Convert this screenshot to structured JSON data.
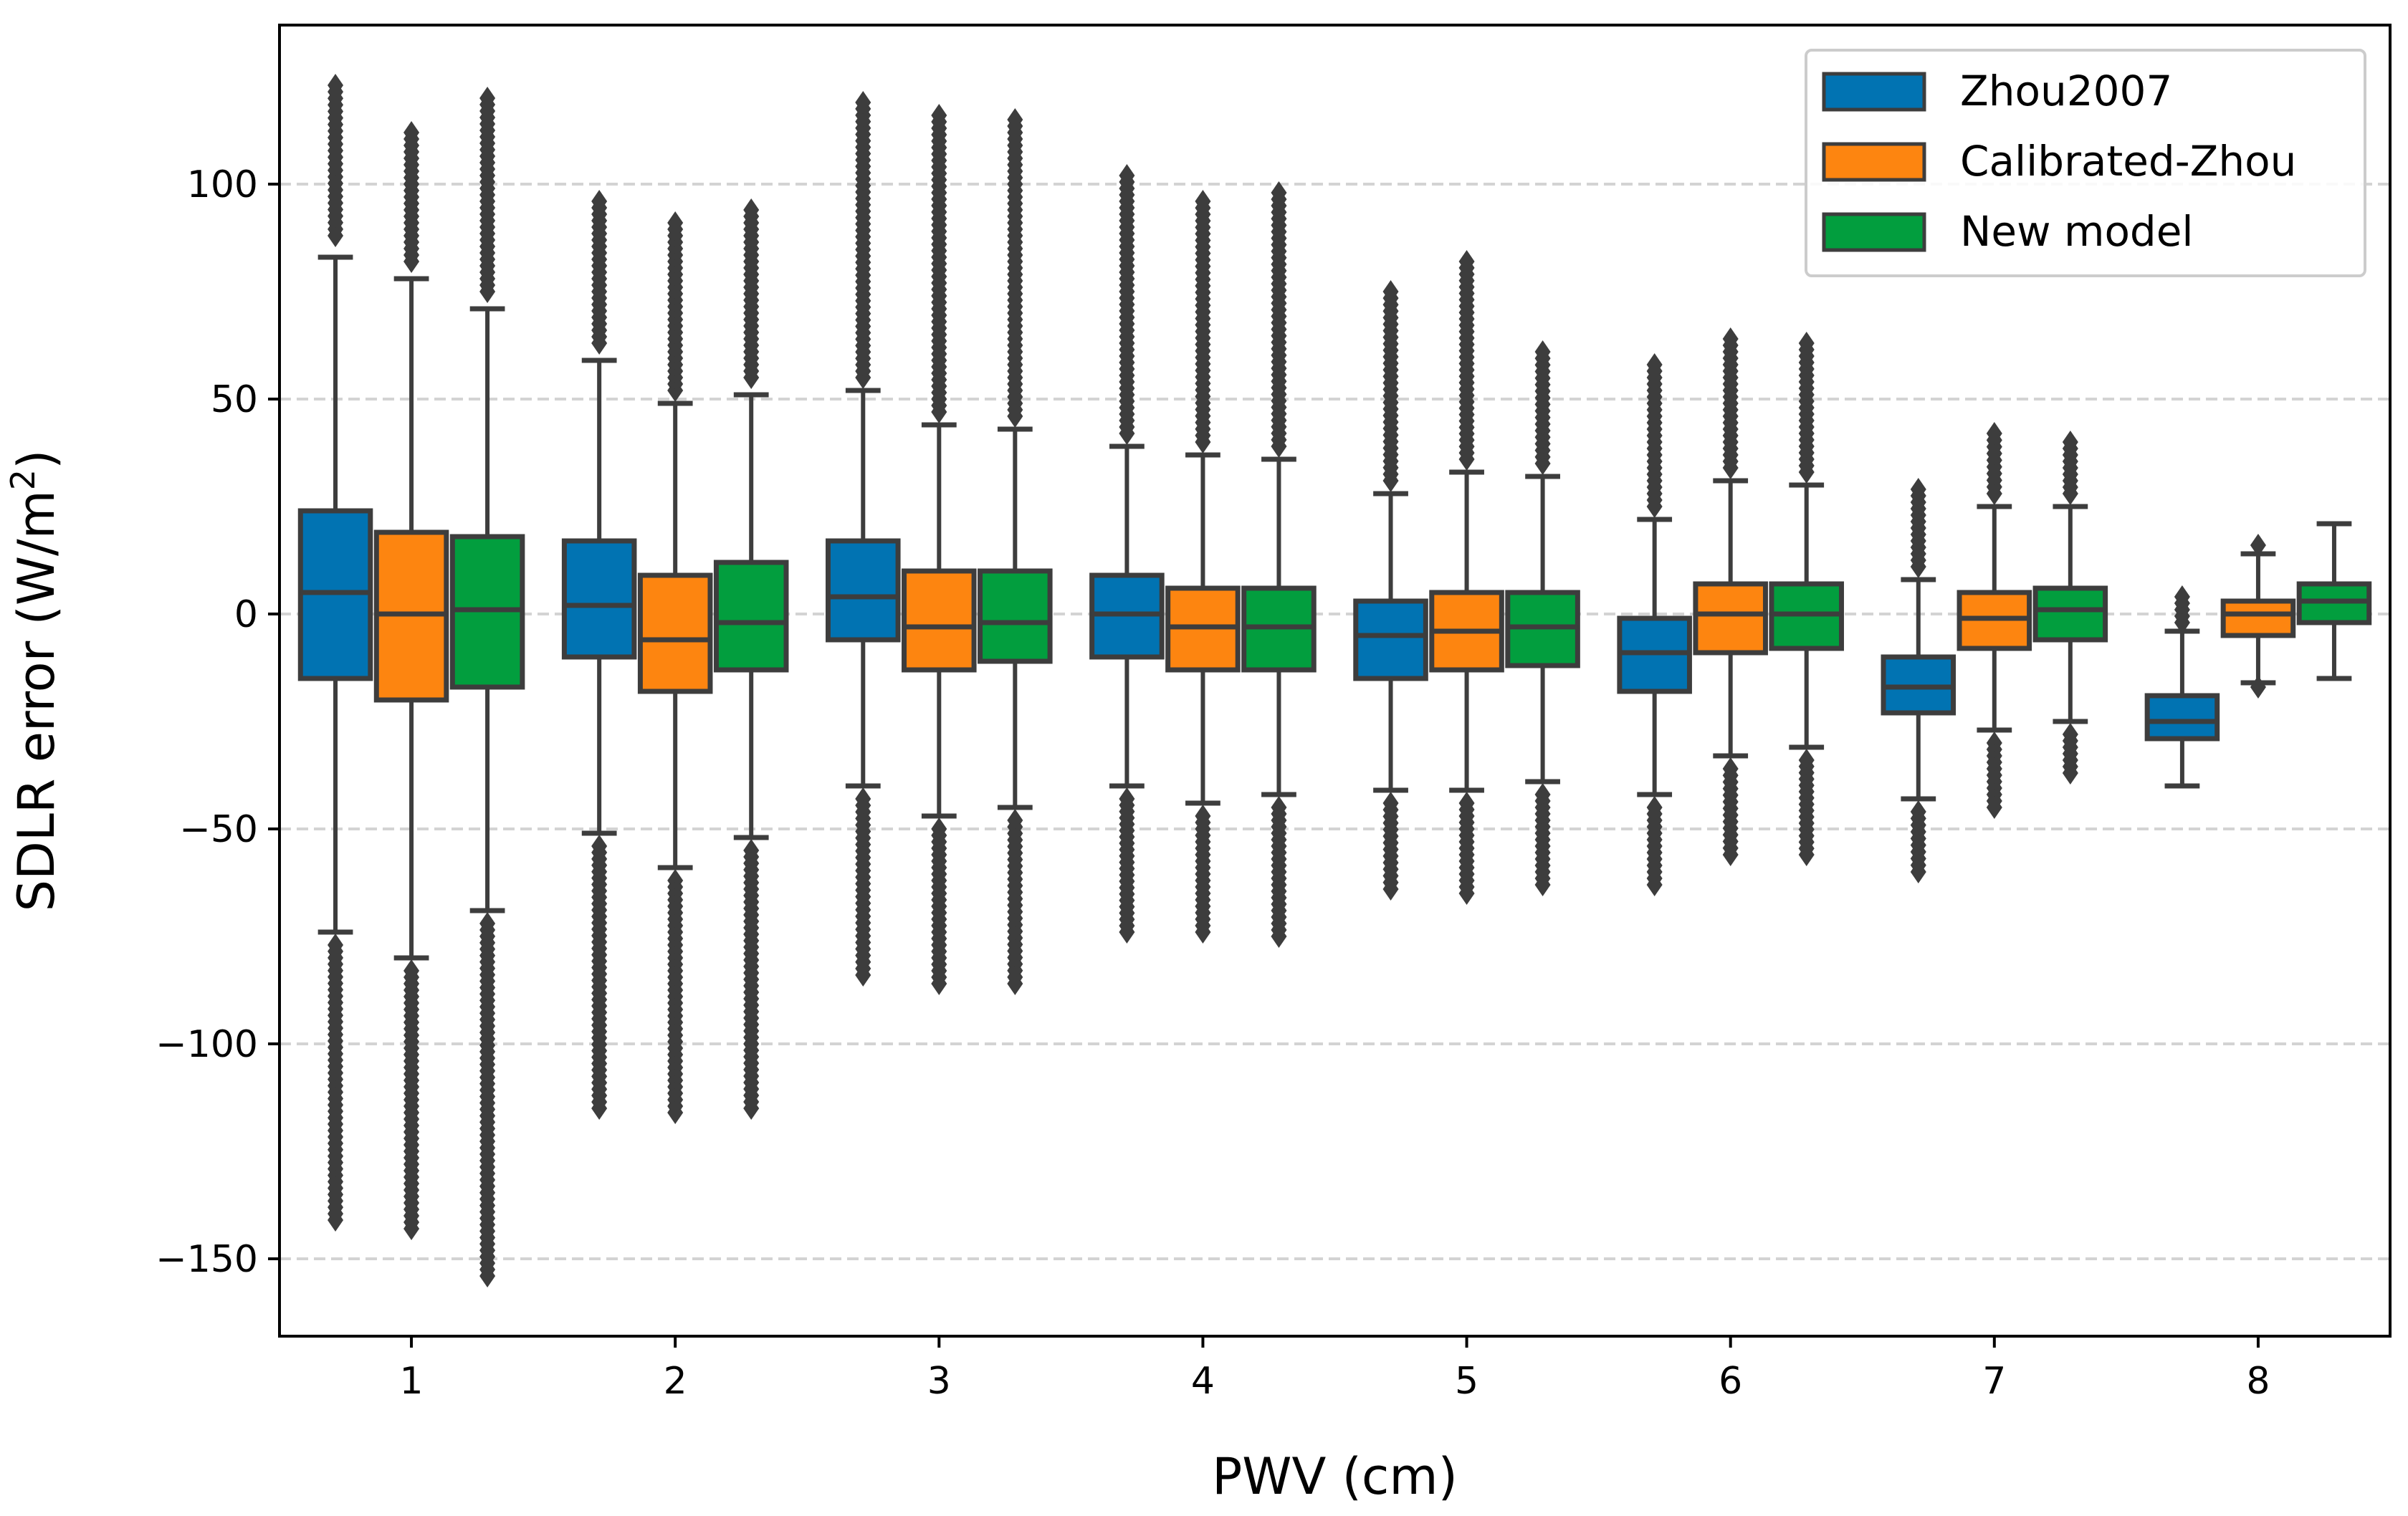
{
  "chart_data": {
    "type": "boxplot",
    "title": "",
    "xlabel": "PWV (cm)",
    "ylabel": "SDLR error (W/m²)",
    "ylabel_parts": {
      "before": "SDLR error (W/m",
      "sup": "2",
      "after": ")"
    },
    "ylim": [
      -168,
      137
    ],
    "yticks": [
      100,
      50,
      0,
      -50,
      -100,
      -150
    ],
    "ytick_labels": [
      "100",
      "50",
      "0",
      "−50",
      "−100",
      "−150"
    ],
    "grid": "y-dashed",
    "legend_position": "top-right",
    "categories": [
      "1",
      "2",
      "3",
      "4",
      "5",
      "6",
      "7",
      "8"
    ],
    "colors": {
      "Zhou2007": "#0173b2",
      "Calibrated-Zhou": "#fd8510",
      "New model": "#029e3e",
      "edge": "#3d3d3d",
      "grid": "#d3d3d3"
    },
    "series": [
      {
        "name": "Zhou2007",
        "boxes": [
          {
            "q1": -15,
            "median": 5,
            "q3": 24,
            "whislo": -74,
            "whishi": 83,
            "fliers_high": [
              88,
              123
            ],
            "fliers_low": [
              -77,
              -141
            ]
          },
          {
            "q1": -10,
            "median": 2,
            "q3": 17,
            "whislo": -51,
            "whishi": 59,
            "fliers_high": [
              63,
              96
            ],
            "fliers_low": [
              -54,
              -115
            ]
          },
          {
            "q1": -6,
            "median": 4,
            "q3": 17,
            "whislo": -40,
            "whishi": 52,
            "fliers_high": [
              55,
              119
            ],
            "fliers_low": [
              -43,
              -84
            ]
          },
          {
            "q1": -10,
            "median": 0,
            "q3": 9,
            "whislo": -40,
            "whishi": 39,
            "fliers_high": [
              42,
              102
            ],
            "fliers_low": [
              -43,
              -74
            ]
          },
          {
            "q1": -15,
            "median": -5,
            "q3": 3,
            "whislo": -41,
            "whishi": 28,
            "fliers_high": [
              31,
              75
            ],
            "fliers_low": [
              -44,
              -64
            ]
          },
          {
            "q1": -18,
            "median": -9,
            "q3": -1,
            "whislo": -42,
            "whishi": 22,
            "fliers_high": [
              25,
              58
            ],
            "fliers_low": [
              -45,
              -63
            ]
          },
          {
            "q1": -23,
            "median": -17,
            "q3": -10,
            "whislo": -43,
            "whishi": 8,
            "fliers_high": [
              11,
              29
            ],
            "fliers_low": [
              -46,
              -60
            ]
          },
          {
            "q1": -29,
            "median": -25,
            "q3": -19,
            "whislo": -40,
            "whishi": -4,
            "fliers_high": [
              -2,
              4
            ],
            "fliers_low": []
          }
        ]
      },
      {
        "name": "Calibrated-Zhou",
        "boxes": [
          {
            "q1": -20,
            "median": 0,
            "q3": 19,
            "whislo": -80,
            "whishi": 78,
            "fliers_high": [
              82,
              112
            ],
            "fliers_low": [
              -83,
              -143
            ]
          },
          {
            "q1": -18,
            "median": -6,
            "q3": 9,
            "whislo": -59,
            "whishi": 49,
            "fliers_high": [
              52,
              91
            ],
            "fliers_low": [
              -62,
              -116
            ]
          },
          {
            "q1": -13,
            "median": -3,
            "q3": 10,
            "whislo": -47,
            "whishi": 44,
            "fliers_high": [
              47,
              116
            ],
            "fliers_low": [
              -50,
              -86
            ]
          },
          {
            "q1": -13,
            "median": -3,
            "q3": 6,
            "whislo": -44,
            "whishi": 37,
            "fliers_high": [
              40,
              96
            ],
            "fliers_low": [
              -47,
              -74
            ]
          },
          {
            "q1": -13,
            "median": -4,
            "q3": 5,
            "whislo": -41,
            "whishi": 33,
            "fliers_high": [
              36,
              82
            ],
            "fliers_low": [
              -44,
              -65
            ]
          },
          {
            "q1": -9,
            "median": 0,
            "q3": 7,
            "whislo": -33,
            "whishi": 31,
            "fliers_high": [
              34,
              64
            ],
            "fliers_low": [
              -36,
              -56
            ]
          },
          {
            "q1": -8,
            "median": -1,
            "q3": 5,
            "whislo": -27,
            "whishi": 25,
            "fliers_high": [
              28,
              42
            ],
            "fliers_low": [
              -30,
              -45
            ]
          },
          {
            "q1": -5,
            "median": 0,
            "q3": 3,
            "whislo": -16,
            "whishi": 14,
            "fliers_high": [
              16
            ],
            "fliers_low": [
              -17
            ]
          }
        ]
      },
      {
        "name": "New model",
        "boxes": [
          {
            "q1": -17,
            "median": 1,
            "q3": 18,
            "whislo": -69,
            "whishi": 71,
            "fliers_high": [
              75,
              120
            ],
            "fliers_low": [
              -72,
              -154
            ]
          },
          {
            "q1": -13,
            "median": -2,
            "q3": 12,
            "whislo": -52,
            "whishi": 51,
            "fliers_high": [
              55,
              94
            ],
            "fliers_low": [
              -55,
              -115
            ]
          },
          {
            "q1": -11,
            "median": -2,
            "q3": 10,
            "whislo": -45,
            "whishi": 43,
            "fliers_high": [
              46,
              115
            ],
            "fliers_low": [
              -48,
              -86
            ]
          },
          {
            "q1": -13,
            "median": -3,
            "q3": 6,
            "whislo": -42,
            "whishi": 36,
            "fliers_high": [
              39,
              98
            ],
            "fliers_low": [
              -45,
              -75
            ]
          },
          {
            "q1": -12,
            "median": -3,
            "q3": 5,
            "whislo": -39,
            "whishi": 32,
            "fliers_high": [
              35,
              61
            ],
            "fliers_low": [
              -42,
              -63
            ]
          },
          {
            "q1": -8,
            "median": 0,
            "q3": 7,
            "whislo": -31,
            "whishi": 30,
            "fliers_high": [
              33,
              63
            ],
            "fliers_low": [
              -34,
              -56
            ]
          },
          {
            "q1": -6,
            "median": 1,
            "q3": 6,
            "whislo": -25,
            "whishi": 25,
            "fliers_high": [
              28,
              40
            ],
            "fliers_low": [
              -28,
              -37
            ]
          },
          {
            "q1": -2,
            "median": 3,
            "q3": 7,
            "whislo": -15,
            "whishi": 21,
            "fliers_high": [],
            "fliers_low": []
          }
        ]
      }
    ]
  }
}
